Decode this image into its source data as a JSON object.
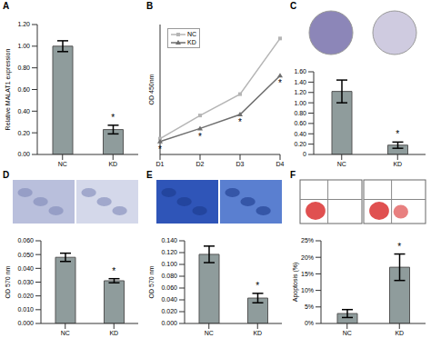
{
  "chart_data": [
    {
      "panel_label": "A",
      "type": "bar",
      "categories": [
        "NC",
        "KD"
      ],
      "values": [
        1.0,
        0.23
      ],
      "errors": [
        0.05,
        0.04
      ],
      "color": "#8f9c9c",
      "ylabel": "Relative MALAT1 expression",
      "ylim": [
        0,
        1.2
      ],
      "yticks": [
        {
          "value": 0,
          "label": "0.00"
        },
        {
          "value": 0.2,
          "label": "0.20"
        },
        {
          "value": 0.4,
          "label": "0.40"
        },
        {
          "value": 0.6,
          "label": "0.60"
        },
        {
          "value": 0.8,
          "label": "0.80"
        },
        {
          "value": 1.0,
          "label": "1.00"
        },
        {
          "value": 1.2,
          "label": "1.20"
        }
      ],
      "annotations": [
        {
          "category": "KD",
          "text": "*"
        }
      ]
    },
    {
      "panel_label": "B",
      "type": "line",
      "x": [
        "D1",
        "D2",
        "D3",
        "D4"
      ],
      "series": [
        {
          "name": "NC",
          "color": "#b5b5b5",
          "marker": "square",
          "values": [
            0.17,
            0.42,
            0.65,
            1.25
          ]
        },
        {
          "name": "KD",
          "color": "#6e6e6e",
          "marker": "triangle",
          "values": [
            0.14,
            0.28,
            0.43,
            0.85
          ]
        }
      ],
      "ylabel": "OD 450nm",
      "ylim": [
        0,
        1.4
      ],
      "tick_labels": "x",
      "legend": "upper left",
      "annotations": [
        {
          "series": "KD",
          "x": "D1",
          "text": "*"
        },
        {
          "series": "KD",
          "x": "D2",
          "text": "*"
        },
        {
          "series": "KD",
          "x": "D3",
          "text": "*"
        },
        {
          "series": "KD",
          "x": "D4",
          "text": "*"
        }
      ]
    },
    {
      "panel_label": "C",
      "type": "bar",
      "categories": [
        "NC",
        "KD"
      ],
      "values": [
        1.22,
        0.18
      ],
      "errors": [
        0.22,
        0.06
      ],
      "color": "#8f9c9c",
      "ylim": [
        0,
        1.6
      ],
      "yticks": [
        0,
        {
          "value": 0.2,
          "label": "0.20"
        },
        {
          "value": 0.4,
          "label": "0.40"
        },
        {
          "value": 0.6,
          "label": "0.60"
        },
        {
          "value": 0.8,
          "label": "0.80"
        },
        {
          "value": 1.0,
          "label": "1.00"
        },
        {
          "value": 1.2,
          "label": "1.20"
        },
        {
          "value": 1.4,
          "label": "1.40"
        },
        {
          "value": 1.6,
          "label": "1.60"
        }
      ],
      "annotations": [
        {
          "category": "KD",
          "text": "*"
        }
      ]
    },
    {
      "panel_label": "D",
      "type": "bar",
      "categories": [
        "NC",
        "KD"
      ],
      "values": [
        0.048,
        0.031
      ],
      "errors": [
        0.003,
        0.0015
      ],
      "color": "#8f9c9c",
      "ylabel": "OD 570 nm",
      "ylim": [
        0,
        0.06
      ],
      "yticks": [
        {
          "value": 0,
          "label": "0.000"
        },
        {
          "value": 0.01,
          "label": "0.010"
        },
        {
          "value": 0.02,
          "label": "0.020"
        },
        {
          "value": 0.03,
          "label": "0.030"
        },
        {
          "value": 0.04,
          "label": "0.040"
        },
        {
          "value": 0.05,
          "label": "0.050"
        },
        {
          "value": 0.06,
          "label": "0.060"
        }
      ],
      "annotations": [
        {
          "category": "KD",
          "text": "*"
        }
      ]
    },
    {
      "panel_label": "E",
      "type": "bar",
      "categories": [
        "NC",
        "KD"
      ],
      "values": [
        0.117,
        0.043
      ],
      "errors": [
        0.014,
        0.008
      ],
      "color": "#8f9c9c",
      "ylabel": "OD 570 nm",
      "ylim": [
        0,
        0.14
      ],
      "yticks": [
        {
          "value": 0,
          "label": "0.000"
        },
        {
          "value": 0.02,
          "label": "0.020"
        },
        {
          "value": 0.04,
          "label": "0.040"
        },
        {
          "value": 0.06,
          "label": "0.060"
        },
        {
          "value": 0.08,
          "label": "0.080"
        },
        {
          "value": 0.1,
          "label": "0.100"
        },
        {
          "value": 0.12,
          "label": "0.120"
        },
        {
          "value": 0.14,
          "label": "0.140"
        }
      ],
      "annotations": [
        {
          "category": "KD",
          "text": "*"
        }
      ]
    },
    {
      "panel_label": "F",
      "type": "bar",
      "categories": [
        "NC",
        "KD"
      ],
      "values": [
        3,
        17
      ],
      "errors": [
        1.2,
        4
      ],
      "color": "#8f9c9c",
      "ylabel": "Apoptosis (%)",
      "ylim": [
        0,
        25
      ],
      "yticks": [
        {
          "value": 0,
          "label": "0%"
        },
        {
          "value": 5,
          "label": "5%"
        },
        {
          "value": 10,
          "label": "10%"
        },
        {
          "value": 15,
          "label": "15%"
        },
        {
          "value": 20,
          "label": "20%"
        },
        {
          "value": 25,
          "label": "25%"
        }
      ],
      "annotations": [
        {
          "category": "KD",
          "text": "*"
        }
      ]
    }
  ]
}
